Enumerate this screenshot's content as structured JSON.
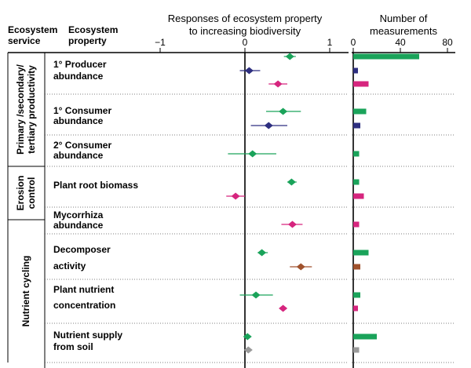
{
  "header": {
    "col1": [
      "Ecosystem",
      "service"
    ],
    "col2": [
      "Ecosystem",
      "property"
    ],
    "forest_title": [
      "Responses of ecosystem property",
      "to increasing biodiversity"
    ],
    "bar_title": [
      "Number of",
      "measurements"
    ]
  },
  "services": [
    {
      "label": [
        "Primary /secondary/",
        "tertiary productivity"
      ],
      "rows": [
        0,
        2
      ]
    },
    {
      "label": [
        "Erosion",
        "control"
      ],
      "rows": [
        3,
        4
      ]
    },
    {
      "label": [
        "Nutrient cycling"
      ],
      "rows": [
        5,
        7
      ]
    }
  ],
  "properties": [
    {
      "label": [
        "1° Producer",
        "abundance"
      ]
    },
    {
      "label": [
        "1° Consumer",
        "abundance"
      ]
    },
    {
      "label": [
        "2° Consumer",
        "abundance"
      ]
    },
    {
      "label": [
        "Plant root biomass"
      ]
    },
    {
      "label": [
        "Mycorrhiza",
        "abundance"
      ]
    },
    {
      "label": [
        "Decomposer",
        "activity"
      ],
      "split": true
    },
    {
      "label": [
        "Plant nutrient",
        "concentration"
      ],
      "split": true
    },
    {
      "label": [
        "Nutrient supply",
        "from soil"
      ]
    }
  ],
  "colors": {
    "green": "#1aa35a",
    "navy": "#2e2f80",
    "magenta": "#d6257e",
    "brown": "#a0522d",
    "gray": "#9a9a9a"
  },
  "chart_data": [
    {
      "type": "scatter",
      "title": "Responses of ecosystem property to increasing biodiversity",
      "xlim": [
        -1.2,
        1.2
      ],
      "xticks": [
        "-1",
        "0",
        "1"
      ],
      "points": [
        {
          "property": 0,
          "color": "green",
          "est": 0.53,
          "lo": 0.46,
          "hi": 0.6
        },
        {
          "property": 0,
          "color": "navy",
          "est": 0.05,
          "lo": -0.06,
          "hi": 0.18
        },
        {
          "property": 0,
          "color": "magenta",
          "est": 0.39,
          "lo": 0.28,
          "hi": 0.5
        },
        {
          "property": 1,
          "color": "green",
          "est": 0.45,
          "lo": 0.25,
          "hi": 0.66
        },
        {
          "property": 1,
          "color": "navy",
          "est": 0.28,
          "lo": 0.07,
          "hi": 0.5
        },
        {
          "property": 2,
          "color": "green",
          "est": 0.09,
          "lo": -0.2,
          "hi": 0.37
        },
        {
          "property": 3,
          "color": "green",
          "est": 0.55,
          "lo": 0.5,
          "hi": 0.61
        },
        {
          "property": 3,
          "color": "magenta",
          "est": -0.11,
          "lo": -0.22,
          "hi": 0.0
        },
        {
          "property": 4,
          "color": "magenta",
          "est": 0.56,
          "lo": 0.43,
          "hi": 0.68
        },
        {
          "property": 5,
          "color": "green",
          "est": 0.2,
          "lo": 0.15,
          "hi": 0.27
        },
        {
          "property": 5,
          "color": "brown",
          "est": 0.66,
          "lo": 0.53,
          "hi": 0.79
        },
        {
          "property": 6,
          "color": "green",
          "est": 0.13,
          "lo": -0.06,
          "hi": 0.33
        },
        {
          "property": 6,
          "color": "magenta",
          "est": 0.45,
          "lo": 0.41,
          "hi": 0.49
        },
        {
          "property": 7,
          "color": "green",
          "est": 0.03,
          "lo": -0.01,
          "hi": 0.07
        },
        {
          "property": 7,
          "color": "gray",
          "est": 0.04,
          "lo": 0.0,
          "hi": 0.08
        }
      ]
    },
    {
      "type": "bar",
      "title": "Number of measurements",
      "xlim": [
        0,
        80
      ],
      "xticks": [
        "0",
        "40",
        "80"
      ],
      "bars": [
        {
          "property": 0,
          "color": "green",
          "value": 56
        },
        {
          "property": 0,
          "color": "navy",
          "value": 4
        },
        {
          "property": 0,
          "color": "magenta",
          "value": 13
        },
        {
          "property": 1,
          "color": "green",
          "value": 11
        },
        {
          "property": 1,
          "color": "navy",
          "value": 6
        },
        {
          "property": 2,
          "color": "green",
          "value": 5
        },
        {
          "property": 3,
          "color": "green",
          "value": 5
        },
        {
          "property": 3,
          "color": "magenta",
          "value": 9
        },
        {
          "property": 4,
          "color": "magenta",
          "value": 5
        },
        {
          "property": 5,
          "color": "green",
          "value": 13
        },
        {
          "property": 5,
          "color": "brown",
          "value": 6
        },
        {
          "property": 6,
          "color": "green",
          "value": 6
        },
        {
          "property": 6,
          "color": "magenta",
          "value": 4
        },
        {
          "property": 7,
          "color": "green",
          "value": 20
        },
        {
          "property": 7,
          "color": "gray",
          "value": 5
        }
      ]
    }
  ]
}
